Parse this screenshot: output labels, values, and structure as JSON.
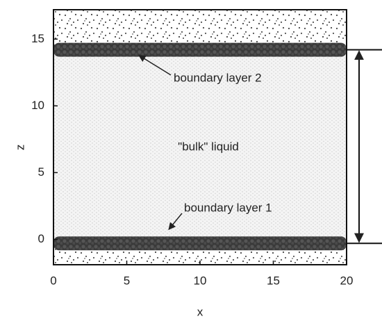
{
  "chart_data": {
    "type": "snapshot",
    "xlabel": "x",
    "ylabel": "z",
    "xlim": [
      0,
      20
    ],
    "ylim": [
      -1.9,
      17.2
    ],
    "xticks": [
      0,
      5,
      10,
      15,
      20
    ],
    "yticks": [
      0,
      5,
      10,
      15
    ],
    "layers": [
      {
        "name": "boundary layer 2",
        "z": 14.2
      },
      {
        "name": "boundary layer 1",
        "z": -0.3
      }
    ],
    "bulk_label": "\"bulk\" liquid"
  }
}
